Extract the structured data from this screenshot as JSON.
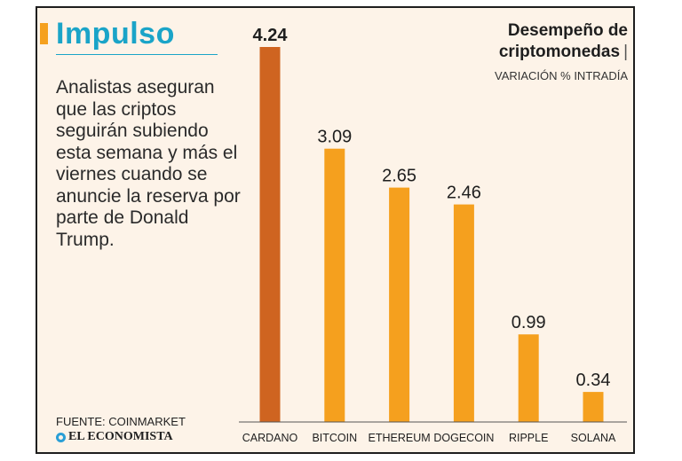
{
  "headline": "Impulso",
  "body_text": "Analistas aseguran que las criptos seguirán subiendo esta semana y más el viernes cuando se anuncie la reserva por parte de Donald Trump.",
  "source": "FUENTE: COINMARKET",
  "brand": "EL ECONOMISTA",
  "colors": {
    "accent": "#f5a01e",
    "highlight_bar": "#cf6420",
    "headline": "#1aa4c8",
    "background": "#fdf3e8"
  },
  "chart_data": {
    "type": "bar",
    "title_line1": "Desempeño de",
    "title_line2": "criptomonedas",
    "subtitle": "VARIACIÓN % INTRADÍA",
    "categories": [
      "CARDANO",
      "BITCOIN",
      "ETHEREUM",
      "DOGECOIN",
      "RIPPLE",
      "SOLANA"
    ],
    "values": [
      4.24,
      3.09,
      2.65,
      2.46,
      0.99,
      0.34
    ],
    "value_labels": [
      "4.24",
      "3.09",
      "2.65",
      "2.46",
      "0.99",
      "0.34"
    ],
    "highlighted_index": 0,
    "ylim": [
      0,
      4.24
    ],
    "grid": false
  }
}
